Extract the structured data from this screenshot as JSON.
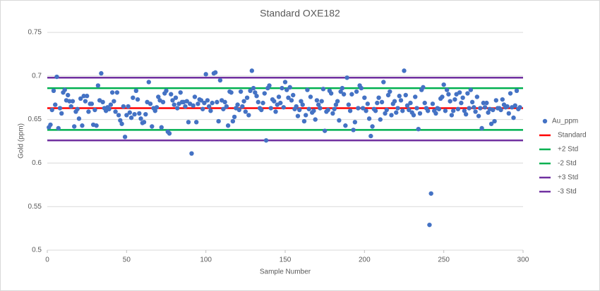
{
  "chart_data": {
    "type": "scatter",
    "title": "Standard OXE182",
    "xlabel": "Sample Number",
    "ylabel": "Gold (ppm)",
    "xlim": [
      0,
      300
    ],
    "xticks": [
      0,
      50,
      100,
      150,
      200,
      250,
      300
    ],
    "ylim": [
      0.5,
      0.75
    ],
    "yticks": [
      0.5,
      0.55,
      0.6,
      0.65,
      0.7,
      0.75
    ],
    "grid": true,
    "legend": "right",
    "series": [
      {
        "name": "Au_ppm",
        "color": "#4472c4",
        "x": [
          1,
          2,
          3,
          4,
          5,
          6,
          7,
          8,
          9,
          10,
          11,
          12,
          13,
          14,
          15,
          16,
          17,
          18,
          19,
          20,
          21,
          22,
          23,
          24,
          25,
          26,
          27,
          28,
          29,
          30,
          31,
          32,
          33,
          34,
          35,
          36,
          37,
          38,
          39,
          40,
          41,
          42,
          43,
          44,
          45,
          46,
          47,
          48,
          49,
          50,
          51,
          52,
          53,
          54,
          55,
          56,
          57,
          58,
          59,
          60,
          61,
          62,
          63,
          64,
          65,
          66,
          67,
          68,
          69,
          70,
          71,
          72,
          73,
          74,
          75,
          76,
          77,
          78,
          79,
          80,
          81,
          82,
          83,
          84,
          85,
          86,
          87,
          88,
          89,
          90,
          91,
          92,
          93,
          94,
          95,
          96,
          97,
          98,
          99,
          100,
          101,
          102,
          103,
          104,
          105,
          106,
          107,
          108,
          109,
          110,
          111,
          112,
          113,
          114,
          115,
          116,
          117,
          118,
          119,
          120,
          121,
          122,
          123,
          124,
          125,
          126,
          127,
          128,
          129,
          130,
          131,
          132,
          133,
          134,
          135,
          136,
          137,
          138,
          139,
          140,
          141,
          142,
          143,
          144,
          145,
          146,
          147,
          148,
          149,
          150,
          151,
          152,
          153,
          154,
          155,
          156,
          157,
          158,
          159,
          160,
          161,
          162,
          163,
          164,
          165,
          166,
          167,
          168,
          169,
          170,
          171,
          172,
          173,
          174,
          175,
          176,
          177,
          178,
          179,
          180,
          181,
          182,
          183,
          184,
          185,
          186,
          187,
          188,
          189,
          190,
          191,
          192,
          193,
          194,
          195,
          196,
          197,
          198,
          199,
          200,
          201,
          202,
          203,
          204,
          205,
          206,
          207,
          208,
          209,
          210,
          211,
          212,
          213,
          214,
          215,
          216,
          217,
          218,
          219,
          220,
          221,
          222,
          223,
          224,
          225,
          226,
          227,
          228,
          229,
          230,
          231,
          232,
          233,
          234,
          235,
          236,
          237,
          238,
          239,
          240,
          241,
          242,
          243,
          244,
          245,
          246,
          247,
          248,
          249,
          250,
          251,
          252,
          253,
          254,
          255,
          256,
          257,
          258,
          259,
          260,
          261,
          262,
          263,
          264,
          265,
          266,
          267,
          268,
          269,
          270,
          271,
          272,
          273,
          274,
          275,
          276,
          277,
          278,
          279,
          280,
          281,
          282,
          283,
          284,
          285,
          286,
          287,
          288,
          289,
          290,
          291,
          292,
          293,
          294,
          295,
          296,
          297,
          298
        ],
        "values": [
          0.641,
          0.644,
          0.661,
          0.683,
          0.667,
          0.699,
          0.64,
          0.663,
          0.657,
          0.681,
          0.684,
          0.672,
          0.678,
          0.671,
          0.665,
          0.671,
          0.642,
          0.659,
          0.662,
          0.651,
          0.674,
          0.643,
          0.677,
          0.671,
          0.677,
          0.659,
          0.668,
          0.668,
          0.644,
          0.661,
          0.643,
          0.689,
          0.672,
          0.703,
          0.67,
          0.663,
          0.66,
          0.664,
          0.662,
          0.667,
          0.681,
          0.671,
          0.659,
          0.681,
          0.655,
          0.649,
          0.645,
          0.665,
          0.63,
          0.655,
          0.665,
          0.658,
          0.652,
          0.675,
          0.656,
          0.683,
          0.673,
          0.657,
          0.651,
          0.646,
          0.647,
          0.656,
          0.67,
          0.693,
          0.668,
          0.642,
          0.663,
          0.66,
          0.664,
          0.676,
          0.672,
          0.641,
          0.67,
          0.68,
          0.683,
          0.636,
          0.634,
          0.679,
          0.672,
          0.667,
          0.675,
          0.663,
          0.668,
          0.681,
          0.67,
          0.67,
          0.665,
          0.671,
          0.647,
          0.668,
          0.611,
          0.666,
          0.676,
          0.647,
          0.668,
          0.673,
          0.672,
          0.662,
          0.669,
          0.702,
          0.672,
          0.665,
          0.66,
          0.669,
          0.703,
          0.704,
          0.67,
          0.648,
          0.695,
          0.672,
          0.662,
          0.67,
          0.665,
          0.643,
          0.682,
          0.681,
          0.648,
          0.653,
          0.663,
          0.667,
          0.661,
          0.682,
          0.665,
          0.671,
          0.659,
          0.675,
          0.655,
          0.683,
          0.706,
          0.686,
          0.681,
          0.677,
          0.67,
          0.663,
          0.661,
          0.669,
          0.68,
          0.626,
          0.686,
          0.689,
          0.663,
          0.673,
          0.671,
          0.659,
          0.667,
          0.676,
          0.669,
          0.686,
          0.664,
          0.693,
          0.684,
          0.675,
          0.687,
          0.672,
          0.678,
          0.662,
          0.665,
          0.654,
          0.661,
          0.671,
          0.667,
          0.648,
          0.655,
          0.684,
          0.662,
          0.676,
          0.658,
          0.66,
          0.65,
          0.672,
          0.667,
          0.663,
          0.671,
          0.685,
          0.637,
          0.659,
          0.661,
          0.683,
          0.68,
          0.657,
          0.662,
          0.667,
          0.671,
          0.649,
          0.682,
          0.686,
          0.679,
          0.643,
          0.698,
          0.667,
          0.66,
          0.679,
          0.638,
          0.647,
          0.682,
          0.663,
          0.689,
          0.686,
          0.663,
          0.675,
          0.66,
          0.668,
          0.651,
          0.631,
          0.642,
          0.662,
          0.66,
          0.669,
          0.675,
          0.65,
          0.67,
          0.693,
          0.657,
          0.661,
          0.678,
          0.682,
          0.655,
          0.668,
          0.671,
          0.658,
          0.663,
          0.677,
          0.672,
          0.66,
          0.706,
          0.678,
          0.666,
          0.661,
          0.669,
          0.658,
          0.655,
          0.676,
          0.663,
          0.639,
          0.657,
          0.684,
          0.687,
          0.669,
          0.663,
          0.66,
          0.529,
          0.565,
          0.668,
          0.66,
          0.657,
          0.663,
          0.662,
          0.674,
          0.676,
          0.69,
          0.66,
          0.684,
          0.679,
          0.671,
          0.655,
          0.66,
          0.673,
          0.679,
          0.662,
          0.681,
          0.669,
          0.675,
          0.66,
          0.656,
          0.68,
          0.663,
          0.684,
          0.67,
          0.664,
          0.659,
          0.676,
          0.654,
          0.663,
          0.64,
          0.669,
          0.664,
          0.669,
          0.658,
          0.662,
          0.645,
          0.661,
          0.648,
          0.672,
          0.663,
          0.663,
          0.661,
          0.673,
          0.667,
          0.664,
          0.665,
          0.657,
          0.68,
          0.664,
          0.652,
          0.666,
          0.683,
          0.662,
          0.664
        ]
      }
    ],
    "reference_lines": [
      {
        "name": "Standard",
        "color": "#ff0000",
        "value": 0.663
      },
      {
        "name": "+2 Std",
        "color": "#00b050",
        "value": 0.686
      },
      {
        "name": "-2 Std",
        "color": "#00b050",
        "value": 0.638
      },
      {
        "name": "+3 Std",
        "color": "#7030a0",
        "value": 0.698
      },
      {
        "name": "-3 Std",
        "color": "#7030a0",
        "value": 0.626
      }
    ]
  }
}
